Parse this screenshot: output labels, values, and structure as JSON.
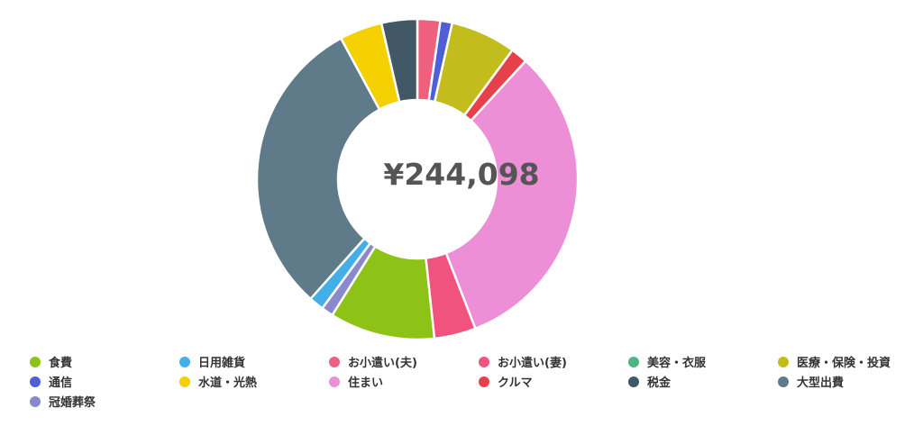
{
  "chart_data": {
    "type": "pie",
    "variant": "donut",
    "center_label": "¥244,098",
    "slices": [
      {
        "name": "お小遣い(夫)",
        "value": 2.3,
        "color": "#ef5f7e"
      },
      {
        "name": "通信",
        "value": 1.2,
        "color": "#4f5fd6"
      },
      {
        "name": "医療・保険・投資",
        "value": 6.6,
        "color": "#c2bd1c"
      },
      {
        "name": "クルマ",
        "value": 1.7,
        "color": "#e6414a"
      },
      {
        "name": "住まい",
        "value": 32.3,
        "color": "#ec8fd6"
      },
      {
        "name": "お小遣い(妻)",
        "value": 4.2,
        "color": "#f0547e"
      },
      {
        "name": "食費",
        "value": 10.6,
        "color": "#8cc316"
      },
      {
        "name": "冠婚葬祭",
        "value": 1.2,
        "color": "#8a89cc"
      },
      {
        "name": "日用雑貨",
        "value": 1.5,
        "color": "#44aee7"
      },
      {
        "name": "大型出費",
        "value": 30.5,
        "color": "#5f7a88"
      },
      {
        "name": "水道・光熱",
        "value": 4.3,
        "color": "#f5d000"
      },
      {
        "name": "税金",
        "value": 3.6,
        "color": "#425866"
      }
    ],
    "legend": {
      "placement": "bottom",
      "items": [
        {
          "label": "食費",
          "color": "#8cc316"
        },
        {
          "label": "日用雑貨",
          "color": "#44aee7"
        },
        {
          "label": "お小遣い(夫)",
          "color": "#ef5f7e"
        },
        {
          "label": "お小遣い(妻)",
          "color": "#f0547e"
        },
        {
          "label": "美容・衣服",
          "color": "#4cb67e"
        },
        {
          "label": "医療・保険・投資",
          "color": "#c2bd1c"
        },
        {
          "label": "通信",
          "color": "#4f5fd6"
        },
        {
          "label": "水道・光熱",
          "color": "#f5d000"
        },
        {
          "label": "住まい",
          "color": "#ec8fd6"
        },
        {
          "label": "クルマ",
          "color": "#e6414a"
        },
        {
          "label": "税金",
          "color": "#425866"
        },
        {
          "label": "大型出費",
          "color": "#5f7a88"
        },
        {
          "label": "冠婚葬祭",
          "color": "#8a89cc"
        }
      ]
    }
  }
}
